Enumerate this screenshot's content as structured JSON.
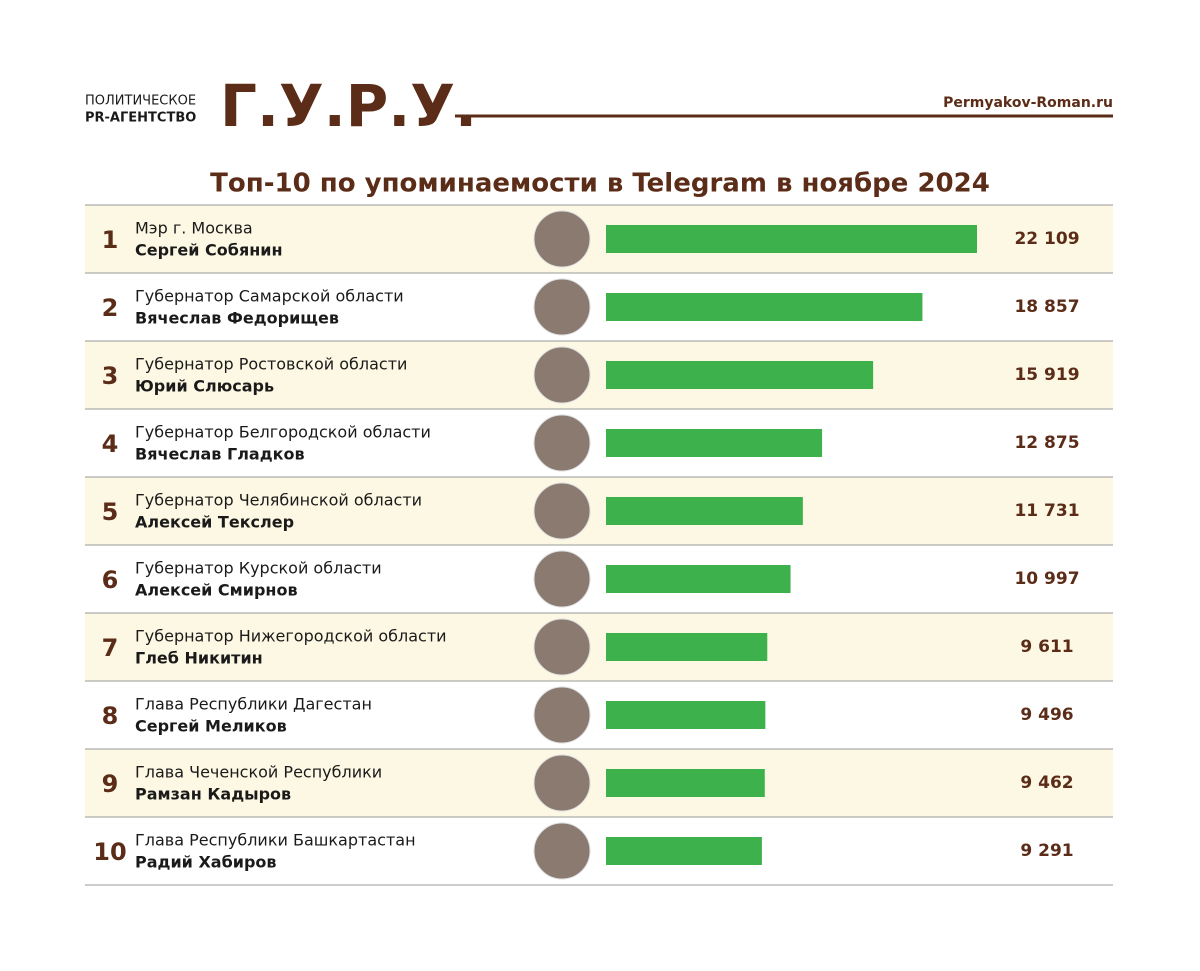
{
  "header": {
    "agency_line1": "ПОЛИТИЧЕСКОЕ",
    "agency_line2": "PR-АГЕНТСТВО",
    "brand": "Г.У.Р.У.",
    "site": "Permyakov-Roman.ru"
  },
  "chart_data": {
    "type": "bar",
    "orientation": "horizontal",
    "title": "Топ-10 по упоминаемости в Telegram в ноябре 2024",
    "ranks": [
      1,
      2,
      3,
      4,
      5,
      6,
      7,
      8,
      9,
      10
    ],
    "positions": [
      "Мэр г. Москва",
      "Губернатор Самарской области",
      "Губернатор Ростовской области",
      "Губернатор Белгородской области",
      "Губернатор Челябинской области",
      "Губернатор Курской области",
      "Губернатор Нижегородской области",
      "Глава Республики Дагестан",
      "Глава Чеченской Республики",
      "Глава Республики Башкартастан"
    ],
    "categories": [
      "Сергей Собянин",
      "Вячеслав Федорищев",
      "Юрий Слюсарь",
      "Вячеслав Гладков",
      "Алексей Текслер",
      "Алексей Смирнов",
      "Глеб Никитин",
      "Сергей Меликов",
      "Рамзан Кадыров",
      "Радий Хабиров"
    ],
    "values": [
      22109,
      18857,
      15919,
      12875,
      11731,
      10997,
      9611,
      9496,
      9462,
      9291
    ],
    "value_labels": [
      "22 109",
      "18 857",
      "15 919",
      "12 875",
      "11 731",
      "10 997",
      "9 611",
      "9 496",
      "9 462",
      "9 291"
    ],
    "color": "#3db14b"
  }
}
